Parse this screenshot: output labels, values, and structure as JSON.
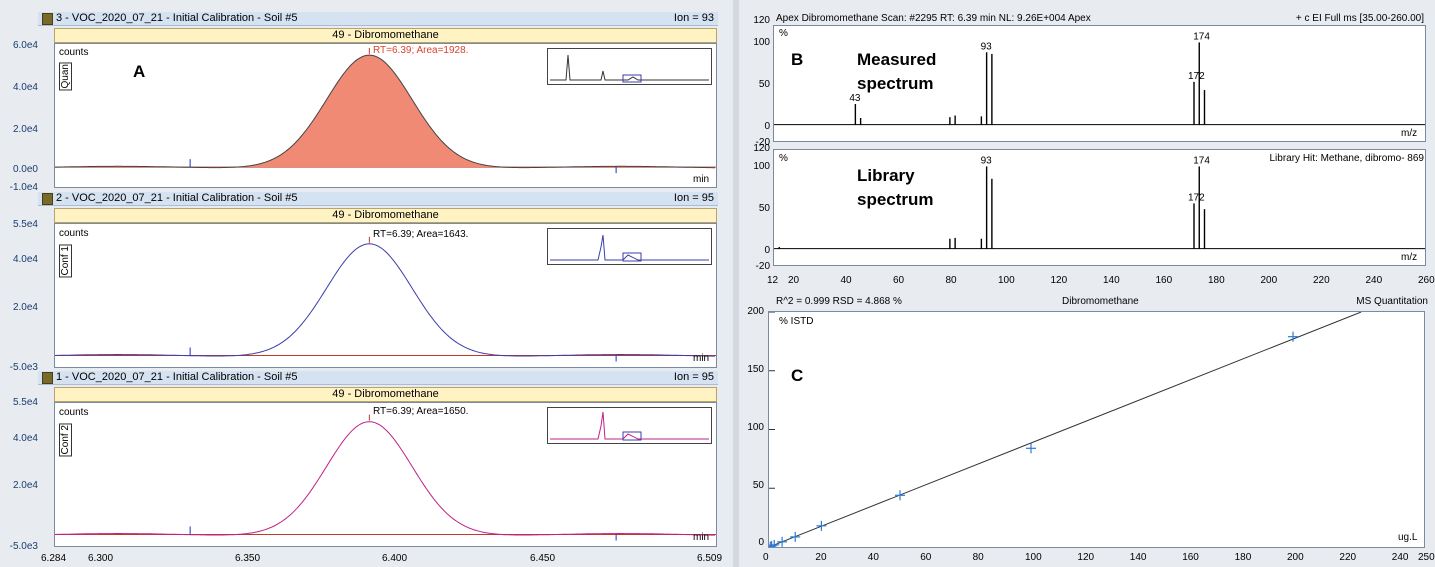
{
  "panelA": {
    "letter": "A",
    "traces": [
      {
        "header": "3 - VOC_2020_07_21 - Initial Calibration - Soil #5",
        "ion": "Ion = 93",
        "compound": "49 - Dibromomethane",
        "annotation": "RT=6.39; Area=1928.",
        "ylabel": "counts",
        "tag": "Quan",
        "yticks": [
          "6.0e4",
          "4.0e4",
          "2.0e4",
          "0.0e0",
          "-1.0e4"
        ],
        "xunit": "min",
        "color": "#c0392b"
      },
      {
        "header": "2 - VOC_2020_07_21 - Initial Calibration - Soil #5",
        "ion": "Ion = 95",
        "compound": "49 - Dibromomethane",
        "annotation": "RT=6.39; Area=1643.",
        "ylabel": "counts",
        "tag": "Conf 1",
        "yticks": [
          "5.5e4",
          "4.0e4",
          "2.0e4",
          "-5.0e3"
        ],
        "xunit": "min",
        "color": "#3b3fa8"
      },
      {
        "header": "1 - VOC_2020_07_21 - Initial Calibration - Soil #5",
        "ion": "Ion = 95",
        "compound": "49 - Dibromomethane",
        "annotation": "RT=6.39; Area=1650.",
        "ylabel": "counts",
        "tag": "Conf 2",
        "yticks": [
          "5.5e4",
          "4.0e4",
          "2.0e4",
          "-5.0e3"
        ],
        "xunit": "min",
        "color": "#c0208a"
      }
    ],
    "xticks": [
      "6.284",
      "6.300",
      "6.350",
      "6.400",
      "6.450",
      "6.509"
    ]
  },
  "panelB": {
    "letter": "B",
    "header_left": "Apex Dibromomethane Scan: #2295  RT: 6.39 min  NL: 9.26E+004    Apex",
    "header_right": "+ c EI Full ms [35.00-260.00]",
    "measured_label_1": "Measured",
    "measured_label_2": "spectrum",
    "library_label_1": "Library",
    "library_label_2": "spectrum",
    "library_hit": "Library Hit: Methane, dibromo- 869",
    "yunit": "%",
    "xunit": "m/z",
    "yticks_top": [
      "120",
      "100",
      "50",
      "0",
      "-20"
    ],
    "yticks_bot": [
      "120",
      "100",
      "50",
      "0",
      "-20"
    ],
    "xticks": [
      "12",
      "20",
      "40",
      "60",
      "80",
      "100",
      "120",
      "140",
      "160",
      "180",
      "200",
      "220",
      "240",
      "260"
    ],
    "peak_labels_top": [
      "43",
      "93",
      "172",
      "174"
    ],
    "peak_labels_bot": [
      "93",
      "172",
      "174"
    ]
  },
  "panelC": {
    "letter": "C",
    "stats": "R^2 = 0.999   RSD = 4.868 %",
    "title": "Dibromomethane",
    "right": "MS Quantitation",
    "yunit": "% ISTD",
    "xunit": "ug.L",
    "yticks": [
      "200",
      "150",
      "100",
      "50",
      "0"
    ],
    "xticks": [
      "0",
      "20",
      "40",
      "60",
      "80",
      "100",
      "120",
      "140",
      "160",
      "180",
      "200",
      "220",
      "240",
      "250"
    ]
  },
  "chart_data": [
    {
      "type": "line",
      "title": "49 - Dibromomethane",
      "ylabel": "counts",
      "xlabel": "min",
      "xlim": [
        6.284,
        6.509
      ],
      "series": [
        {
          "name": "Ion = 93",
          "x": [
            6.284,
            6.33,
            6.36,
            6.375,
            6.385,
            6.391,
            6.4,
            6.41,
            6.42,
            6.44,
            6.509
          ],
          "values": [
            0,
            0,
            5000,
            25000,
            48000,
            56000,
            45000,
            22000,
            8000,
            1000,
            0
          ]
        },
        {
          "name": "Ion = 95",
          "x": [
            6.284,
            6.33,
            6.36,
            6.375,
            6.385,
            6.391,
            6.4,
            6.41,
            6.42,
            6.44,
            6.509
          ],
          "values": [
            0,
            0,
            4000,
            21000,
            41000,
            48000,
            38000,
            18000,
            6500,
            800,
            0
          ]
        },
        {
          "name": "Ion = 95",
          "x": [
            6.284,
            6.33,
            6.36,
            6.375,
            6.385,
            6.391,
            6.4,
            6.41,
            6.42,
            6.44,
            6.509
          ],
          "values": [
            0,
            0,
            4000,
            21000,
            41000,
            48500,
            38000,
            18000,
            6500,
            800,
            0
          ]
        }
      ]
    },
    {
      "type": "bar",
      "title": "Measured spectrum",
      "xlabel": "m/z",
      "ylabel": "%",
      "x": [
        43,
        45,
        79,
        81,
        91,
        93,
        95,
        172,
        174,
        176
      ],
      "values": [
        25,
        8,
        9,
        11,
        10,
        88,
        86,
        52,
        100,
        42
      ],
      "xlim": [
        12,
        260
      ],
      "ylim": [
        -20,
        120
      ]
    },
    {
      "type": "bar",
      "title": "Library spectrum",
      "xlabel": "m/z",
      "ylabel": "%",
      "x": [
        14,
        79,
        81,
        91,
        93,
        95,
        172,
        174,
        176
      ],
      "values": [
        2,
        12,
        13,
        12,
        100,
        85,
        55,
        100,
        48
      ],
      "xlim": [
        12,
        260
      ],
      "ylim": [
        -20,
        120
      ]
    },
    {
      "type": "scatter",
      "title": "Dibromomethane",
      "xlabel": "ug.L",
      "ylabel": "% ISTD",
      "x": [
        0.5,
        1,
        2,
        5,
        10,
        20,
        50,
        100,
        200
      ],
      "values": [
        0.4,
        0.9,
        1.8,
        4.4,
        8.6,
        18,
        44,
        84,
        179
      ],
      "xlim": [
        0,
        250
      ],
      "ylim": [
        0,
        200
      ],
      "fit": {
        "r2": 0.999,
        "slope": 0.885,
        "intercept": 0
      }
    }
  ]
}
